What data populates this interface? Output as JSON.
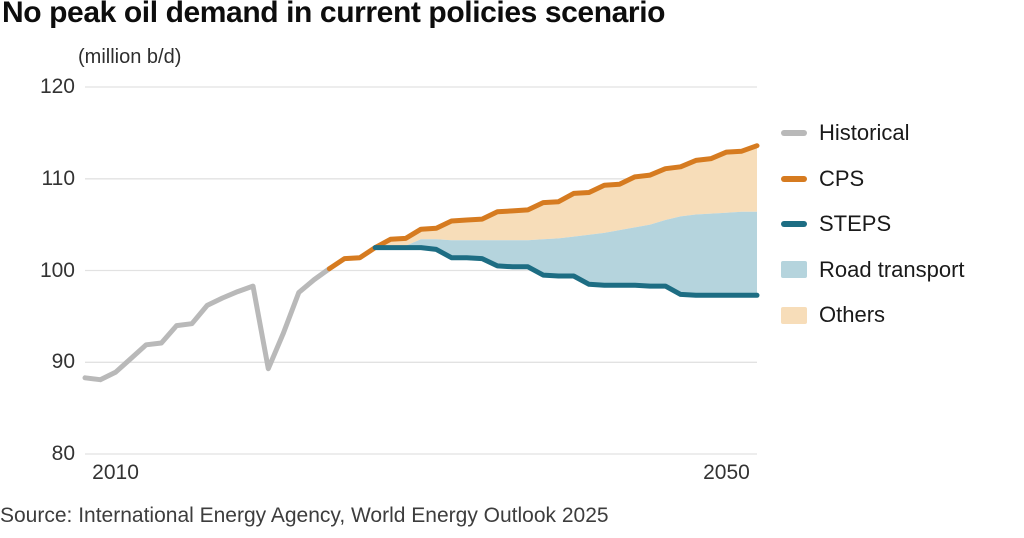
{
  "title": "No peak oil demand in current policies scenario",
  "unit_label": "(million b/d)",
  "source": "Source: International Energy Agency, World Energy Outlook 2025",
  "axes": {
    "y_tick_labels": [
      "120",
      "110",
      "100",
      "90",
      "80"
    ],
    "x_tick_labels": [
      "2010",
      "2050"
    ]
  },
  "legend": [
    {
      "label": "Historical",
      "color": "#b9b9b9",
      "swatch": "line"
    },
    {
      "label": "CPS",
      "color": "#d67b20",
      "swatch": "line"
    },
    {
      "label": "STEPS",
      "color": "#1d6d83",
      "swatch": "line"
    },
    {
      "label": "Road transport",
      "color": "#b5d4dd",
      "swatch": "area"
    },
    {
      "label": "Others",
      "color": "#f7ddb9",
      "swatch": "area"
    }
  ],
  "chart_data": {
    "type": "line+area",
    "title": "No peak oil demand in current policies scenario",
    "ylabel": "(million b/d)",
    "xlim": [
      2008,
      2052
    ],
    "ylim": [
      80,
      120
    ],
    "y_ticks": [
      120,
      110,
      100,
      90,
      80
    ],
    "x_ticks": [
      2010,
      2050
    ],
    "grid_color": "#e2e2e2",
    "colors": {
      "historical": "#b9b9b9",
      "cps": "#d67b20",
      "steps": "#1d6d83",
      "road_transport": "#b5d4dd",
      "others": "#f7ddb9"
    },
    "historical": [
      [
        2008,
        88.3
      ],
      [
        2009,
        88.1
      ],
      [
        2010,
        88.9
      ],
      [
        2011,
        90.4
      ],
      [
        2012,
        91.9
      ],
      [
        2013,
        92.1
      ],
      [
        2014,
        94.0
      ],
      [
        2015,
        94.2
      ],
      [
        2016,
        96.2
      ],
      [
        2017,
        97.0
      ],
      [
        2018,
        97.7
      ],
      [
        2019,
        98.3
      ],
      [
        2020,
        89.3
      ],
      [
        2021,
        93.2
      ],
      [
        2022,
        97.6
      ],
      [
        2023,
        99.0
      ],
      [
        2024,
        100.2
      ]
    ],
    "cps": [
      [
        2024,
        100.2
      ],
      [
        2025,
        101.3
      ],
      [
        2026,
        101.4
      ],
      [
        2027,
        102.5
      ],
      [
        2028,
        103.4
      ],
      [
        2029,
        103.5
      ],
      [
        2030,
        104.5
      ],
      [
        2031,
        104.6
      ],
      [
        2032,
        105.4
      ],
      [
        2033,
        105.5
      ],
      [
        2034,
        105.6
      ],
      [
        2035,
        106.4
      ],
      [
        2036,
        106.5
      ],
      [
        2037,
        106.6
      ],
      [
        2038,
        107.4
      ],
      [
        2039,
        107.5
      ],
      [
        2040,
        108.4
      ],
      [
        2041,
        108.5
      ],
      [
        2042,
        109.3
      ],
      [
        2043,
        109.4
      ],
      [
        2044,
        110.2
      ],
      [
        2045,
        110.4
      ],
      [
        2046,
        111.1
      ],
      [
        2047,
        111.3
      ],
      [
        2048,
        112.0
      ],
      [
        2049,
        112.2
      ],
      [
        2050,
        112.9
      ],
      [
        2051,
        113.0
      ],
      [
        2052,
        113.6
      ]
    ],
    "steps": [
      [
        2027,
        102.5
      ],
      [
        2028,
        102.5
      ],
      [
        2029,
        102.5
      ],
      [
        2030,
        102.5
      ],
      [
        2031,
        102.3
      ],
      [
        2032,
        101.4
      ],
      [
        2033,
        101.4
      ],
      [
        2034,
        101.3
      ],
      [
        2035,
        100.5
      ],
      [
        2036,
        100.4
      ],
      [
        2037,
        100.4
      ],
      [
        2038,
        99.5
      ],
      [
        2039,
        99.4
      ],
      [
        2040,
        99.4
      ],
      [
        2041,
        98.5
      ],
      [
        2042,
        98.4
      ],
      [
        2043,
        98.4
      ],
      [
        2044,
        98.4
      ],
      [
        2045,
        98.3
      ],
      [
        2046,
        98.3
      ],
      [
        2047,
        97.4
      ],
      [
        2048,
        97.3
      ],
      [
        2049,
        97.3
      ],
      [
        2050,
        97.3
      ],
      [
        2051,
        97.3
      ],
      [
        2052,
        97.3
      ]
    ],
    "road_transport_upper": [
      [
        2027,
        102.5
      ],
      [
        2028,
        102.5
      ],
      [
        2029,
        102.7
      ],
      [
        2030,
        103.4
      ],
      [
        2031,
        103.4
      ],
      [
        2032,
        103.3
      ],
      [
        2033,
        103.3
      ],
      [
        2034,
        103.3
      ],
      [
        2035,
        103.3
      ],
      [
        2036,
        103.3
      ],
      [
        2037,
        103.3
      ],
      [
        2038,
        103.4
      ],
      [
        2039,
        103.5
      ],
      [
        2040,
        103.7
      ],
      [
        2041,
        103.9
      ],
      [
        2042,
        104.1
      ],
      [
        2043,
        104.4
      ],
      [
        2044,
        104.7
      ],
      [
        2045,
        105.0
      ],
      [
        2046,
        105.5
      ],
      [
        2047,
        105.9
      ],
      [
        2048,
        106.1
      ],
      [
        2049,
        106.2
      ],
      [
        2050,
        106.3
      ],
      [
        2051,
        106.4
      ],
      [
        2052,
        106.4
      ]
    ]
  }
}
